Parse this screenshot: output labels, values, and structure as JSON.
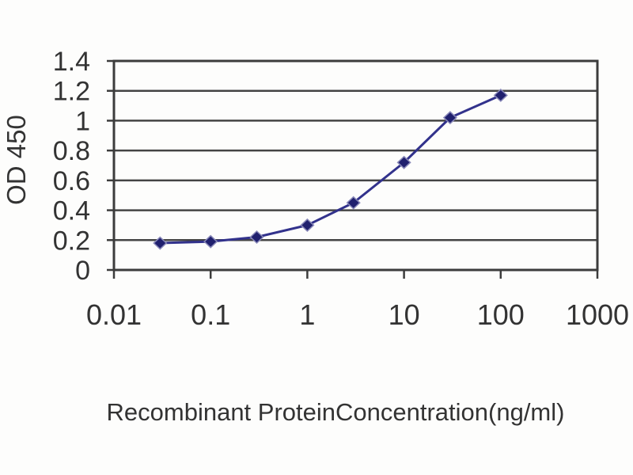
{
  "figure": {
    "background": "#fdfdfc"
  },
  "chart_data": {
    "type": "line",
    "title": "",
    "xlabel": "Recombinant ProteinConcentration(ng/ml)",
    "ylabel": "OD 450",
    "x_scale": "log10",
    "xlim": [
      0.01,
      1000
    ],
    "ylim": [
      0,
      1.4
    ],
    "x_ticks": [
      0.01,
      0.1,
      1,
      10,
      100,
      1000
    ],
    "x_tick_labels": [
      "0.01",
      "0.1",
      "1",
      "10",
      "100",
      "1000"
    ],
    "y_ticks": [
      0,
      0.2,
      0.4,
      0.6,
      0.8,
      1,
      1.2,
      1.4
    ],
    "y_tick_labels": [
      "0",
      "0.2",
      "0.4",
      "0.6",
      "0.8",
      "1",
      "1.2",
      "1.4"
    ],
    "grid": "horizontal-gridlines",
    "legend": "none",
    "series": [
      {
        "name": "OD 450 vs concentration",
        "marker": "diamond",
        "line_color": "#32328c",
        "marker_color": "#20206e",
        "marker_halo": "#8888b8",
        "x": [
          0.03,
          0.1,
          0.3,
          1,
          3,
          10,
          30,
          100
        ],
        "y": [
          0.18,
          0.19,
          0.22,
          0.3,
          0.45,
          0.72,
          1.02,
          1.17
        ]
      }
    ]
  },
  "colors": {
    "axis": "#3c3c3c",
    "grid": "#444444",
    "text": "#333333",
    "background": "#fdfdfc"
  }
}
